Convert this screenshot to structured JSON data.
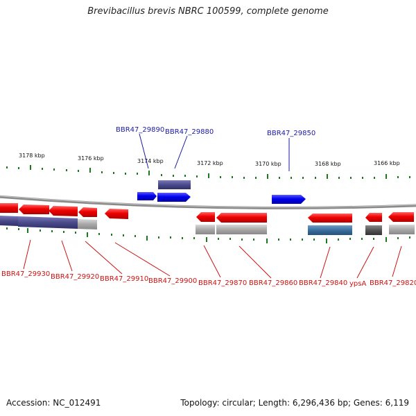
{
  "title": "Brevibacillus brevis NBRC 100599, complete genome",
  "footer": {
    "accession": "Accession: NC_012491",
    "summary": "Topology: circular; Length: 6,296,436 bp; Genes: 6,119"
  },
  "scale_ticks": [
    "3178 kbp",
    "3176 kbp",
    "3174 kbp",
    "3172 kbp",
    "3170 kbp",
    "3168 kbp",
    "3166 kbp"
  ],
  "genes_top": [
    "BBR47_29890",
    "BBR47_29880",
    "BBR47_29850"
  ],
  "genes_bottom": [
    "BBR47_29930",
    "BBR47_29920",
    "BBR47_29910",
    "BBR47_29900",
    "BBR47_29870",
    "BBR47_29860",
    "BBR47_29840",
    "ypsA",
    "BBR47_29820"
  ],
  "colors": {
    "forward_gene": "#0000ee",
    "reverse_gene": "#ee0000",
    "tick": "#1a7a1a",
    "top_label": "#1a1aa6",
    "bottom_label": "#cc1111",
    "cog_purple": "#4a4a8c",
    "cog_gray": "#a8a8a8",
    "cog_steel": "#3a6e9e",
    "cog_dark": "#555555"
  }
}
